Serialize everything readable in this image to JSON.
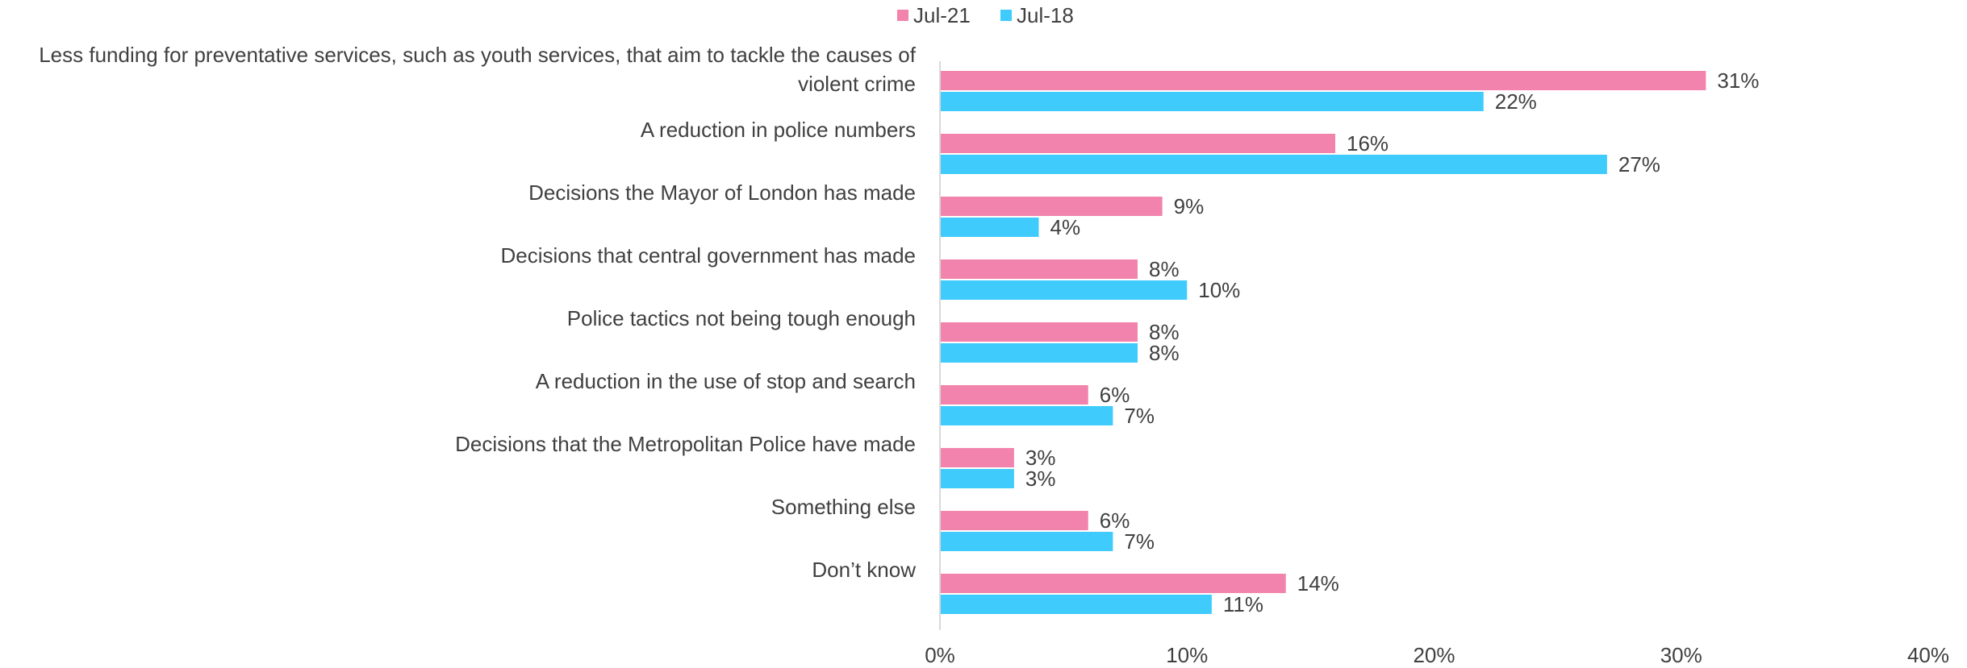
{
  "chart_data": {
    "type": "bar",
    "orientation": "horizontal",
    "title": "",
    "xlabel": "",
    "ylabel": "",
    "xlim": [
      0,
      40
    ],
    "xticks": [
      0,
      10,
      20,
      30,
      40
    ],
    "xtick_labels": [
      "0%",
      "10%",
      "20%",
      "30%",
      "40%"
    ],
    "grid": false,
    "legend_position": "top-center",
    "categories": [
      [
        "Less funding for preventative services, such as youth services, that aim to tackle the causes of",
        "violent crime"
      ],
      [
        "A reduction in police numbers"
      ],
      [
        "Decisions the Mayor of London has made"
      ],
      [
        "Decisions that central government has made"
      ],
      [
        "Police tactics not being tough enough"
      ],
      [
        "A reduction in the use of stop and search"
      ],
      [
        "Decisions that the Metropolitan Police have made"
      ],
      [
        "Something else"
      ],
      [
        "Don’t know"
      ]
    ],
    "series": [
      {
        "name": "Jul-21",
        "color": "#F283AC",
        "values": [
          31,
          16,
          9,
          8,
          8,
          6,
          3,
          6,
          14
        ],
        "labels": [
          "31%",
          "16%",
          "9%",
          "8%",
          "8%",
          "6%",
          "3%",
          "6%",
          "14%"
        ]
      },
      {
        "name": "Jul-18",
        "color": "#3FCBFC",
        "values": [
          22,
          27,
          4,
          10,
          8,
          7,
          3,
          7,
          11
        ],
        "labels": [
          "22%",
          "27%",
          "4%",
          "10%",
          "8%",
          "7%",
          "3%",
          "7%",
          "11%"
        ]
      }
    ]
  }
}
